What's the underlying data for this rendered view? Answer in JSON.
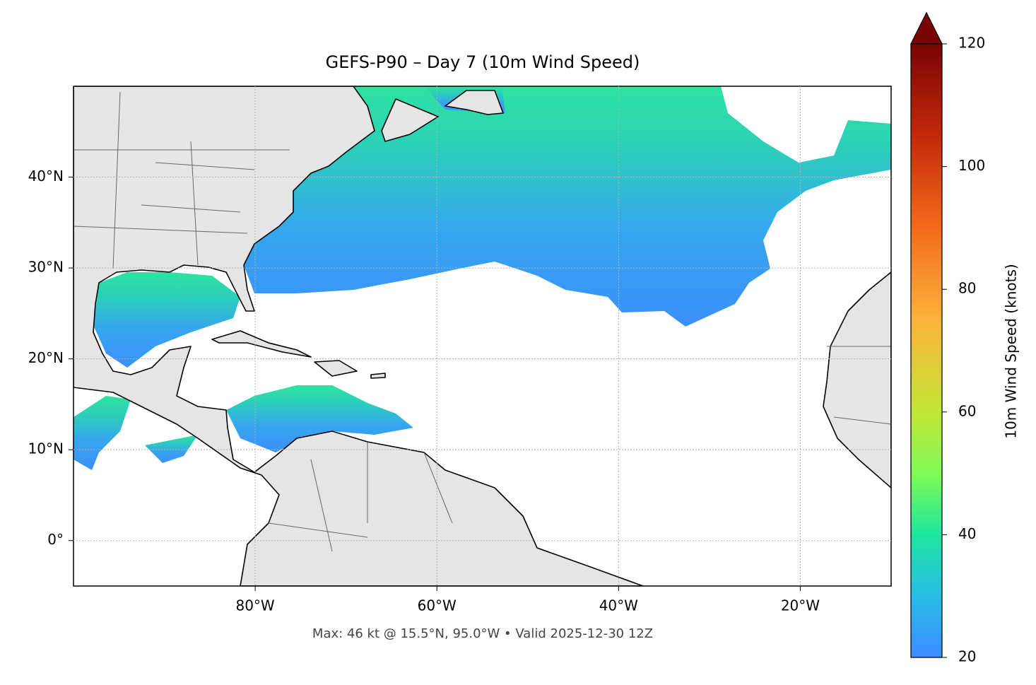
{
  "chart_data": {
    "type": "map",
    "title": "GEFS-P90 – Day 7 (10m Wind Speed)",
    "annotation": "Max: 46 kt @ 15.5°N, 95.0°W • Valid 2025-12-30 12Z",
    "xlim": [
      -100,
      -10
    ],
    "ylim": [
      -5,
      50
    ],
    "xticks": [
      {
        "value": -80,
        "label": "80°W"
      },
      {
        "value": -60,
        "label": "60°W"
      },
      {
        "value": -40,
        "label": "40°W"
      },
      {
        "value": -20,
        "label": "20°W"
      }
    ],
    "yticks": [
      {
        "value": 0,
        "label": "0°"
      },
      {
        "value": 10,
        "label": "10°N"
      },
      {
        "value": 20,
        "label": "20°N"
      },
      {
        "value": 30,
        "label": "30°N"
      },
      {
        "value": 40,
        "label": "40°N"
      }
    ],
    "grid": true,
    "colorbar": {
      "label": "10m Wind Speed (knots)",
      "lim": [
        20,
        120
      ],
      "ticks": [
        20,
        40,
        60,
        80,
        100,
        120
      ],
      "extend": "max"
    }
  }
}
